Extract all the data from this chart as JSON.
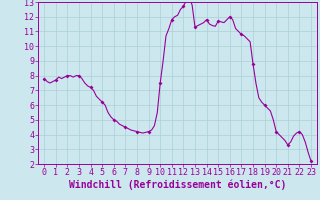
{
  "title": "",
  "xlabel": "Windchill (Refroidissement éolien,°C)",
  "ylabel": "",
  "background_color": "#cce8ee",
  "line_color": "#990099",
  "marker_color": "#990099",
  "xlim": [
    -0.5,
    23.5
  ],
  "ylim": [
    2,
    13
  ],
  "yticks": [
    2,
    3,
    4,
    5,
    6,
    7,
    8,
    9,
    10,
    11,
    12,
    13
  ],
  "xticks": [
    0,
    1,
    2,
    3,
    4,
    5,
    6,
    7,
    8,
    9,
    10,
    11,
    12,
    13,
    14,
    15,
    16,
    17,
    18,
    19,
    20,
    21,
    22,
    23
  ],
  "x": [
    0,
    0.25,
    0.5,
    0.75,
    1,
    1.25,
    1.5,
    1.75,
    2,
    2.25,
    2.5,
    2.75,
    3,
    3.25,
    3.5,
    3.75,
    4,
    4.25,
    4.5,
    4.75,
    5,
    5.25,
    5.5,
    5.75,
    6,
    6.25,
    6.5,
    6.75,
    7,
    7.25,
    7.5,
    7.75,
    8,
    8.25,
    8.5,
    8.75,
    9,
    9.25,
    9.5,
    9.75,
    10,
    10.25,
    10.5,
    10.75,
    11,
    11.25,
    11.5,
    11.75,
    12,
    12.25,
    12.5,
    12.75,
    13,
    13.25,
    13.5,
    13.75,
    14,
    14.25,
    14.5,
    14.75,
    15,
    15.25,
    15.5,
    15.75,
    16,
    16.25,
    16.5,
    16.75,
    17,
    17.25,
    17.5,
    17.75,
    18,
    18.25,
    18.5,
    18.75,
    19,
    19.25,
    19.5,
    19.75,
    20,
    20.25,
    20.5,
    20.75,
    21,
    21.25,
    21.5,
    21.75,
    22,
    22.25,
    22.5,
    22.75,
    23
  ],
  "y": [
    7.8,
    7.6,
    7.5,
    7.6,
    7.7,
    7.9,
    7.8,
    7.9,
    8.0,
    8.0,
    7.9,
    8.0,
    8.0,
    7.8,
    7.5,
    7.3,
    7.2,
    7.0,
    6.6,
    6.4,
    6.2,
    6.0,
    5.5,
    5.2,
    5.0,
    4.9,
    4.7,
    4.6,
    4.5,
    4.4,
    4.3,
    4.25,
    4.2,
    4.15,
    4.1,
    4.15,
    4.2,
    4.3,
    4.6,
    5.5,
    7.5,
    9.0,
    10.7,
    11.2,
    11.8,
    12.0,
    12.1,
    12.5,
    12.7,
    13.1,
    13.3,
    12.8,
    11.3,
    11.4,
    11.5,
    11.6,
    11.8,
    11.5,
    11.4,
    11.35,
    11.7,
    11.65,
    11.6,
    11.8,
    12.0,
    11.8,
    11.2,
    11.0,
    10.8,
    10.7,
    10.5,
    10.3,
    8.8,
    7.5,
    6.5,
    6.2,
    6.0,
    5.8,
    5.6,
    5.0,
    4.2,
    4.0,
    3.8,
    3.6,
    3.3,
    3.5,
    3.9,
    4.1,
    4.2,
    4.0,
    3.5,
    2.8,
    2.2
  ],
  "marker_x": [
    0,
    1,
    2,
    3,
    4,
    5,
    6,
    7,
    8,
    9,
    10,
    11,
    12,
    13,
    14,
    15,
    16,
    17,
    18,
    19,
    20,
    21,
    22,
    23
  ],
  "marker_y": [
    7.8,
    7.7,
    8.0,
    8.0,
    7.2,
    6.2,
    5.0,
    4.5,
    4.2,
    4.2,
    7.5,
    11.8,
    12.7,
    11.3,
    11.8,
    11.7,
    12.0,
    10.8,
    8.8,
    6.0,
    4.2,
    3.3,
    4.2,
    2.2
  ],
  "grid_color": "#aad0d8",
  "tick_color": "#990099",
  "spine_color": "#990099",
  "tick_fontsize": 6,
  "xlabel_fontsize": 7,
  "marker_size": 2.0,
  "line_width": 0.8
}
